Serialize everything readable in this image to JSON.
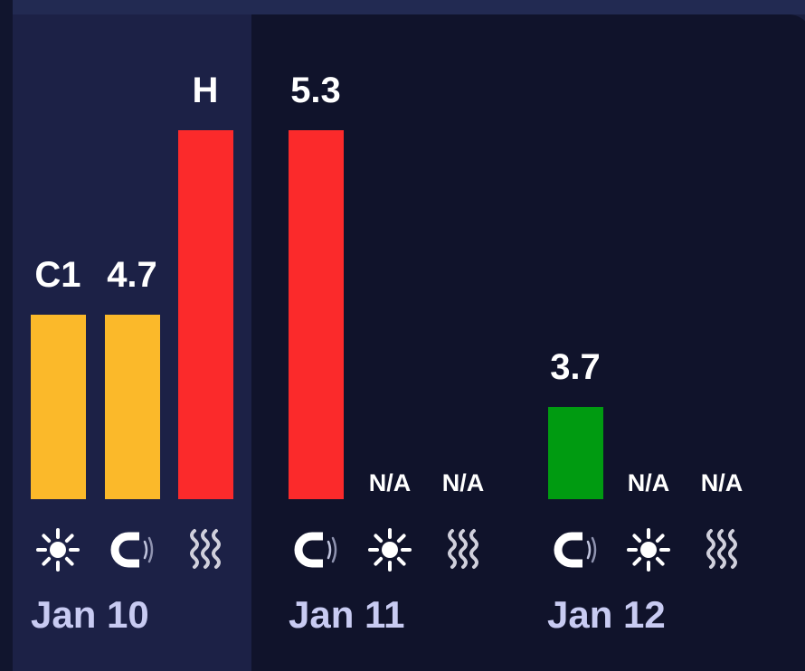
{
  "colors": {
    "yellow": "#fbb92a",
    "red": "#fb2a2b",
    "green": "#009b11"
  },
  "chart_data": {
    "type": "bar",
    "ylim": [
      0,
      10
    ],
    "days": [
      {
        "date": "Jan 10",
        "highlighted": true,
        "bars": [
          {
            "icon": "sun-icon",
            "label": "C1",
            "value": 5.0,
            "color": "yellow"
          },
          {
            "icon": "magnet-icon",
            "label": "4.7",
            "value": 5.0,
            "color": "yellow"
          },
          {
            "icon": "waves-icon",
            "label": "H",
            "value": 10.0,
            "color": "red"
          }
        ]
      },
      {
        "date": "Jan 11",
        "highlighted": false,
        "bars": [
          {
            "icon": "magnet-icon",
            "label": "5.3",
            "value": 10.0,
            "color": "red"
          },
          {
            "icon": "sun-icon",
            "label": "N/A",
            "value": null,
            "color": null
          },
          {
            "icon": "waves-icon",
            "label": "N/A",
            "value": null,
            "color": null
          }
        ]
      },
      {
        "date": "Jan 12",
        "highlighted": false,
        "bars": [
          {
            "icon": "magnet-icon",
            "label": "3.7",
            "value": 2.5,
            "color": "green"
          },
          {
            "icon": "sun-icon",
            "label": "N/A",
            "value": null,
            "color": null
          },
          {
            "icon": "waves-icon",
            "label": "N/A",
            "value": null,
            "color": null
          }
        ]
      }
    ]
  }
}
